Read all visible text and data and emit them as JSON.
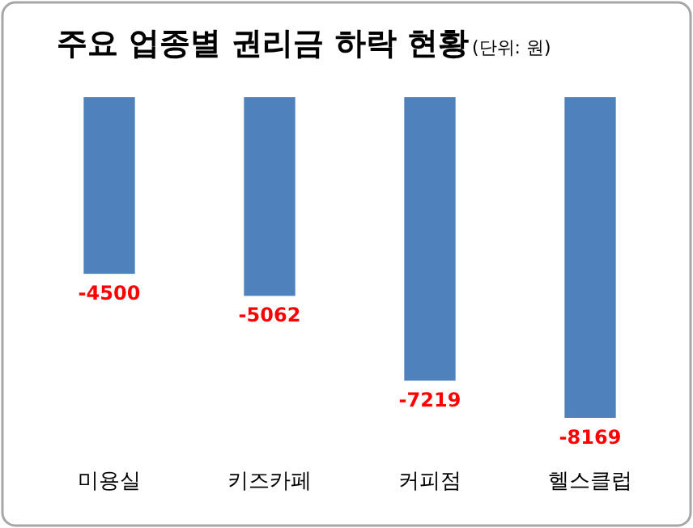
{
  "chart_data": {
    "type": "bar",
    "title": "주요 업종별 권리금 하락 현황",
    "subtitle": "(단위: 원)",
    "categories": [
      "미용실",
      "키즈카페",
      "커피점",
      "헬스클럽"
    ],
    "values": [
      -4500,
      -5062,
      -7219,
      -8169
    ],
    "color": "#4f81bd",
    "data_labels": true
  }
}
